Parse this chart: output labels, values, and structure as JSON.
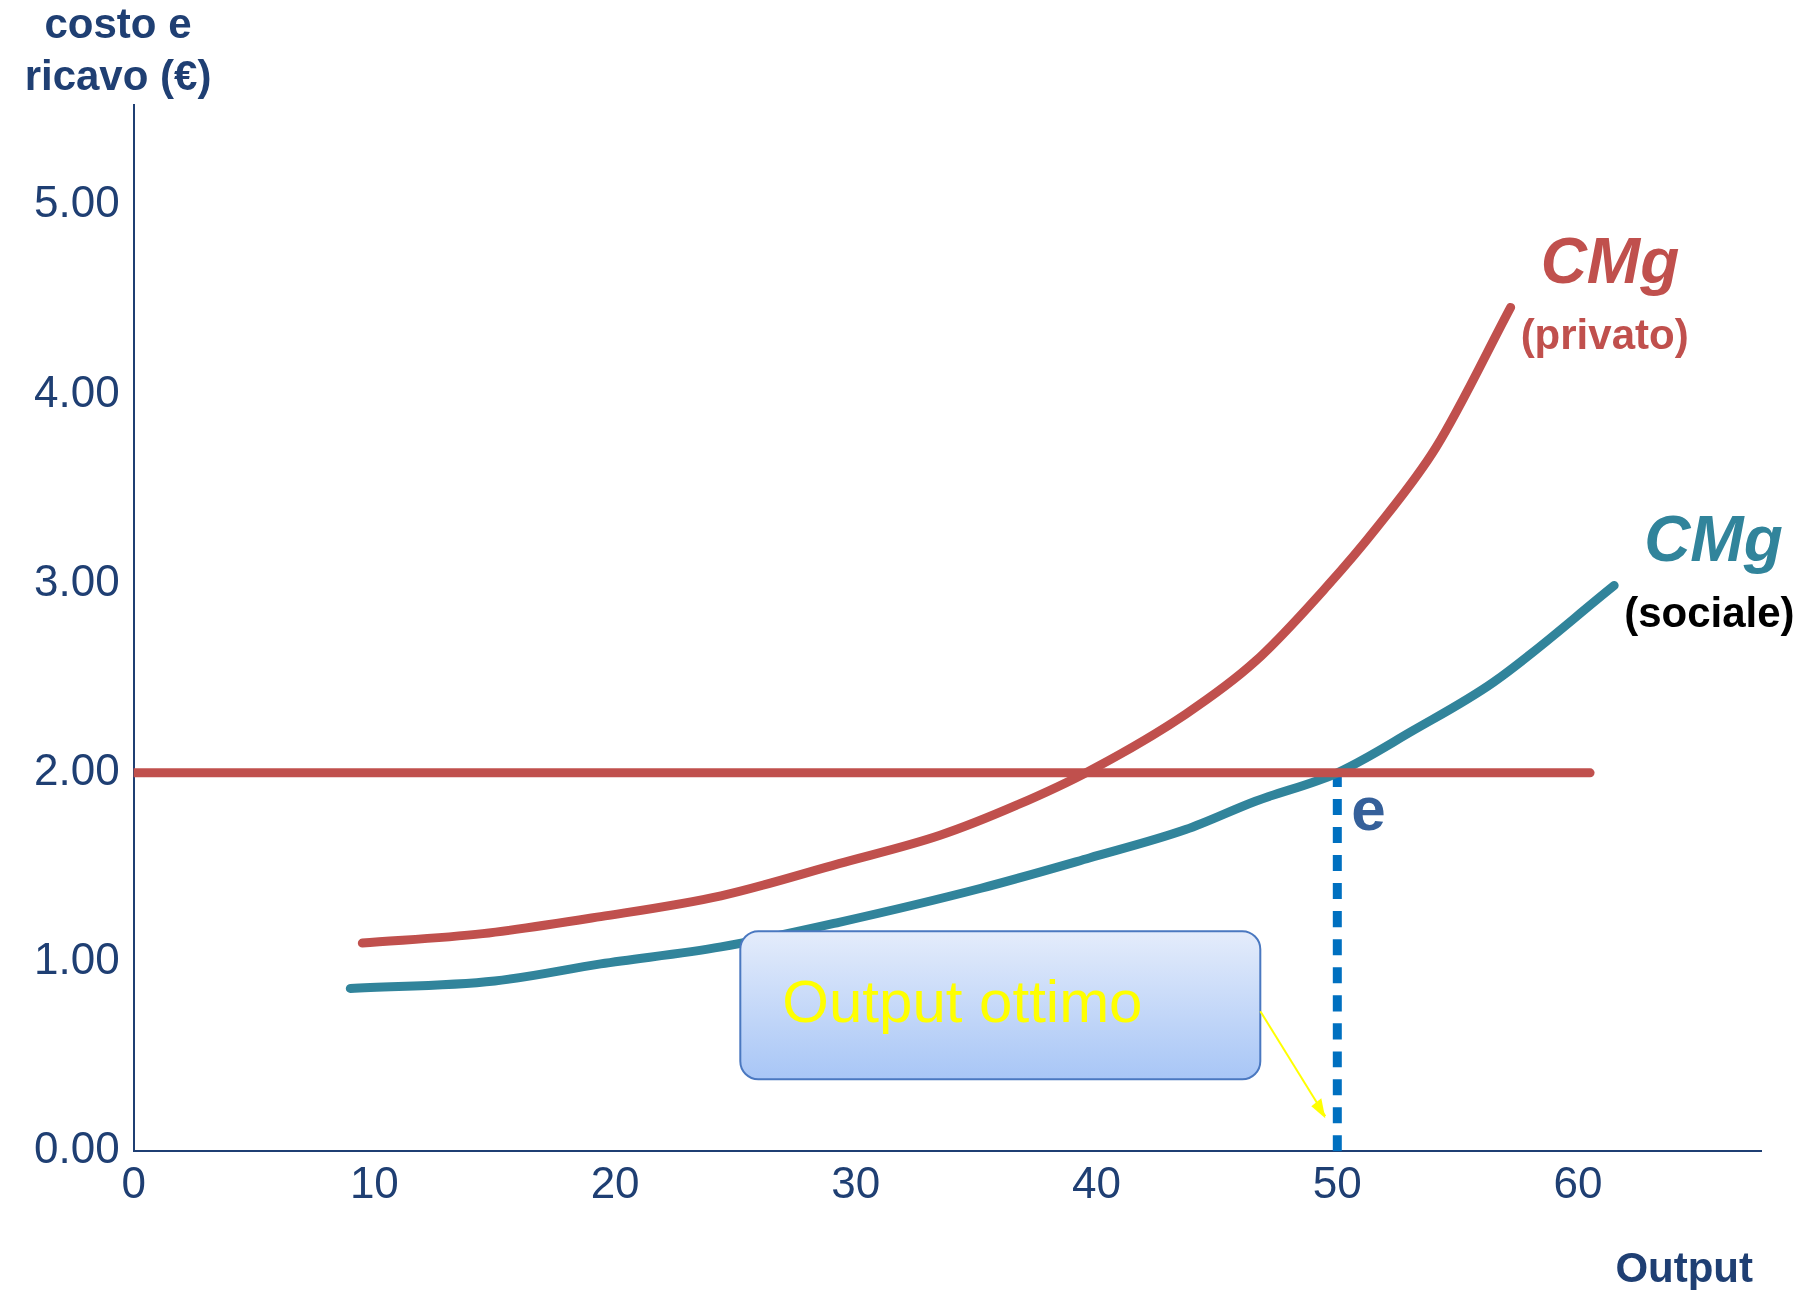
{
  "chart_data": {
    "type": "line",
    "xlabel": "Output",
    "ylabel": "costo e ricavo (€)",
    "xlim": [
      0,
      67.6
    ],
    "ylim": [
      0,
      5.53
    ],
    "xticks": [
      0,
      10,
      20,
      30,
      40,
      50,
      60
    ],
    "yticks": [
      {
        "value": 0,
        "label": "0.00"
      },
      {
        "value": 1,
        "label": "1.00"
      },
      {
        "value": 2,
        "label": "2.00"
      },
      {
        "value": 3,
        "label": "3.00"
      },
      {
        "value": 4,
        "label": "4.00"
      },
      {
        "value": 5,
        "label": "5.00"
      }
    ],
    "grid": false,
    "legend": false,
    "marker": "none",
    "series": [
      {
        "color": "#c0504d",
        "x": [
          0,
          60.5
        ],
        "values": [
          2,
          2
        ]
      },
      {
        "name": "CMg",
        "color": "#c0504d",
        "x": [
          9.5,
          14.5,
          19.4,
          24.4,
          29.3,
          33.5,
          36.7,
          39.7,
          43.7,
          46.6,
          49.6,
          51.6,
          54.1,
          57.2
        ],
        "values": [
          1.1,
          1.15,
          1.24,
          1.35,
          1.52,
          1.67,
          1.83,
          2.01,
          2.31,
          2.59,
          2.99,
          3.29,
          3.72,
          4.46
        ]
      },
      {
        "name": "CMg",
        "color": "#31849b",
        "x": [
          9.0,
          15.0,
          19.4,
          24.4,
          29.3,
          35.2,
          39.7,
          43.7,
          46.6,
          50,
          53.1,
          56.5,
          61.5
        ],
        "values": [
          0.86,
          0.9,
          0.99,
          1.08,
          1.21,
          1.39,
          1.55,
          1.7,
          1.85,
          2.0,
          2.22,
          2.48,
          2.99
        ]
      },
      {
        "color": "#0070c0",
        "line_style": "dashed",
        "x": [
          50,
          50
        ],
        "values": [
          0,
          2
        ]
      }
    ],
    "annotations": [
      "(privato)",
      "(sociale)",
      "e",
      "Output ottimo"
    ]
  }
}
